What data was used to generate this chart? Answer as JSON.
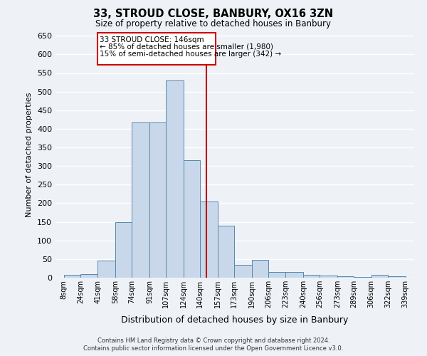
{
  "title": "33, STROUD CLOSE, BANBURY, OX16 3ZN",
  "subtitle": "Size of property relative to detached houses in Banbury",
  "xlabel": "Distribution of detached houses by size in Banbury",
  "ylabel": "Number of detached properties",
  "bin_labels": [
    "8sqm",
    "24sqm",
    "41sqm",
    "58sqm",
    "74sqm",
    "91sqm",
    "107sqm",
    "124sqm",
    "140sqm",
    "157sqm",
    "173sqm",
    "190sqm",
    "206sqm",
    "223sqm",
    "240sqm",
    "256sqm",
    "273sqm",
    "289sqm",
    "306sqm",
    "322sqm",
    "339sqm"
  ],
  "bar_heights": [
    8,
    10,
    45,
    150,
    418,
    418,
    530,
    315,
    205,
    140,
    35,
    48,
    15,
    15,
    8,
    5,
    3,
    2,
    7,
    3
  ],
  "bar_color": "#c8d8ea",
  "bar_edge_color": "#5588aa",
  "property_label": "33 STROUD CLOSE: 146sqm",
  "annotation_line1": "← 85% of detached houses are smaller (1,980)",
  "annotation_line2": "15% of semi-detached houses are larger (342) →",
  "vline_color": "#bb0000",
  "ylim": [
    0,
    660
  ],
  "yticks": [
    0,
    50,
    100,
    150,
    200,
    250,
    300,
    350,
    400,
    450,
    500,
    550,
    600,
    650
  ],
  "background_color": "#eef2f7",
  "grid_color": "#ffffff",
  "footer_line1": "Contains HM Land Registry data © Crown copyright and database right 2024.",
  "footer_line2": "Contains public sector information licensed under the Open Government Licence v3.0."
}
